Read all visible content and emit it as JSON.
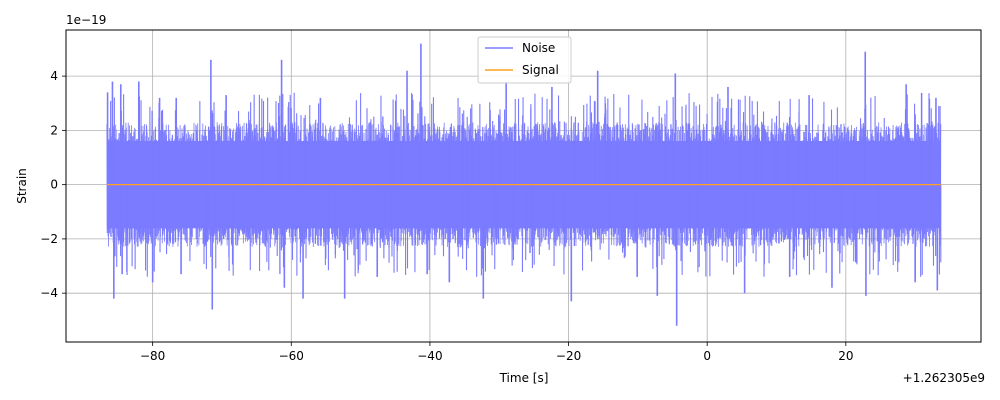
{
  "chart_data": {
    "type": "line",
    "title": "",
    "xlabel": "Time [s]",
    "ylabel": "Strain",
    "x_offset_label": "+1.262305e9",
    "y_scale_label": "1e−19",
    "xlim": [
      -92.5,
      39.5
    ],
    "ylim": [
      -5.8,
      5.7
    ],
    "x_ticks": [
      -80,
      -60,
      -40,
      -20,
      0,
      20
    ],
    "x_tick_labels": [
      "−80",
      "−60",
      "−40",
      "−20",
      "0",
      "20"
    ],
    "y_ticks": [
      -4,
      -2,
      0,
      2,
      4
    ],
    "y_tick_labels": [
      "−4",
      "−2",
      "0",
      "2",
      "4"
    ],
    "grid": true,
    "legend_position": "top-center",
    "series": [
      {
        "name": "Noise",
        "color": "#7b7bff",
        "x_range": [
          -86.6,
          33.7
        ],
        "band_min": -2.3,
        "band_max": 2.3,
        "peaks": [
          {
            "x": -86.5,
            "y": 3.4
          },
          {
            "x": -86.3,
            "y": -1.8
          },
          {
            "x": -85.8,
            "y": 3.8
          },
          {
            "x": -85.6,
            "y": -4.2
          },
          {
            "x": -84.6,
            "y": 3.7
          },
          {
            "x": -84.4,
            "y": -3.3
          },
          {
            "x": -82.0,
            "y": 3.8
          },
          {
            "x": -80.0,
            "y": -3.6
          },
          {
            "x": -79.0,
            "y": 3.2
          },
          {
            "x": -76.6,
            "y": 3.2
          },
          {
            "x": -75.9,
            "y": -3.3
          },
          {
            "x": -71.6,
            "y": 4.6
          },
          {
            "x": -71.4,
            "y": -4.6
          },
          {
            "x": -69.4,
            "y": 3.3
          },
          {
            "x": -61.4,
            "y": 4.6
          },
          {
            "x": -61.0,
            "y": -3.8
          },
          {
            "x": -58.3,
            "y": -4.2
          },
          {
            "x": -55.8,
            "y": 3.2
          },
          {
            "x": -52.3,
            "y": -4.2
          },
          {
            "x": -47.6,
            "y": -3.4
          },
          {
            "x": -43.3,
            "y": 4.2
          },
          {
            "x": -41.3,
            "y": 5.2
          },
          {
            "x": -40.4,
            "y": -3.3
          },
          {
            "x": -37.2,
            "y": -3.6
          },
          {
            "x": -32.3,
            "y": -4.2
          },
          {
            "x": -29.0,
            "y": 3.8
          },
          {
            "x": -22.4,
            "y": 3.6
          },
          {
            "x": -19.6,
            "y": -4.3
          },
          {
            "x": -15.8,
            "y": 4.2
          },
          {
            "x": -10.1,
            "y": -3.4
          },
          {
            "x": -7.2,
            "y": -4.1
          },
          {
            "x": -4.6,
            "y": 4.1
          },
          {
            "x": -4.4,
            "y": -5.2
          },
          {
            "x": 3.0,
            "y": 3.6
          },
          {
            "x": 5.4,
            "y": -4.0
          },
          {
            "x": 11.9,
            "y": -3.4
          },
          {
            "x": 14.7,
            "y": 3.3
          },
          {
            "x": 18.0,
            "y": -3.8
          },
          {
            "x": 22.8,
            "y": 4.9
          },
          {
            "x": 22.9,
            "y": -4.1
          },
          {
            "x": 28.7,
            "y": 3.7
          },
          {
            "x": 30.0,
            "y": -3.6
          },
          {
            "x": 33.0,
            "y": 3.2
          },
          {
            "x": 33.2,
            "y": -3.9
          }
        ]
      },
      {
        "name": "Signal",
        "color": "#ffa020",
        "x": [
          -86.6,
          33.7
        ],
        "y": [
          0.0,
          0.0
        ]
      }
    ]
  }
}
